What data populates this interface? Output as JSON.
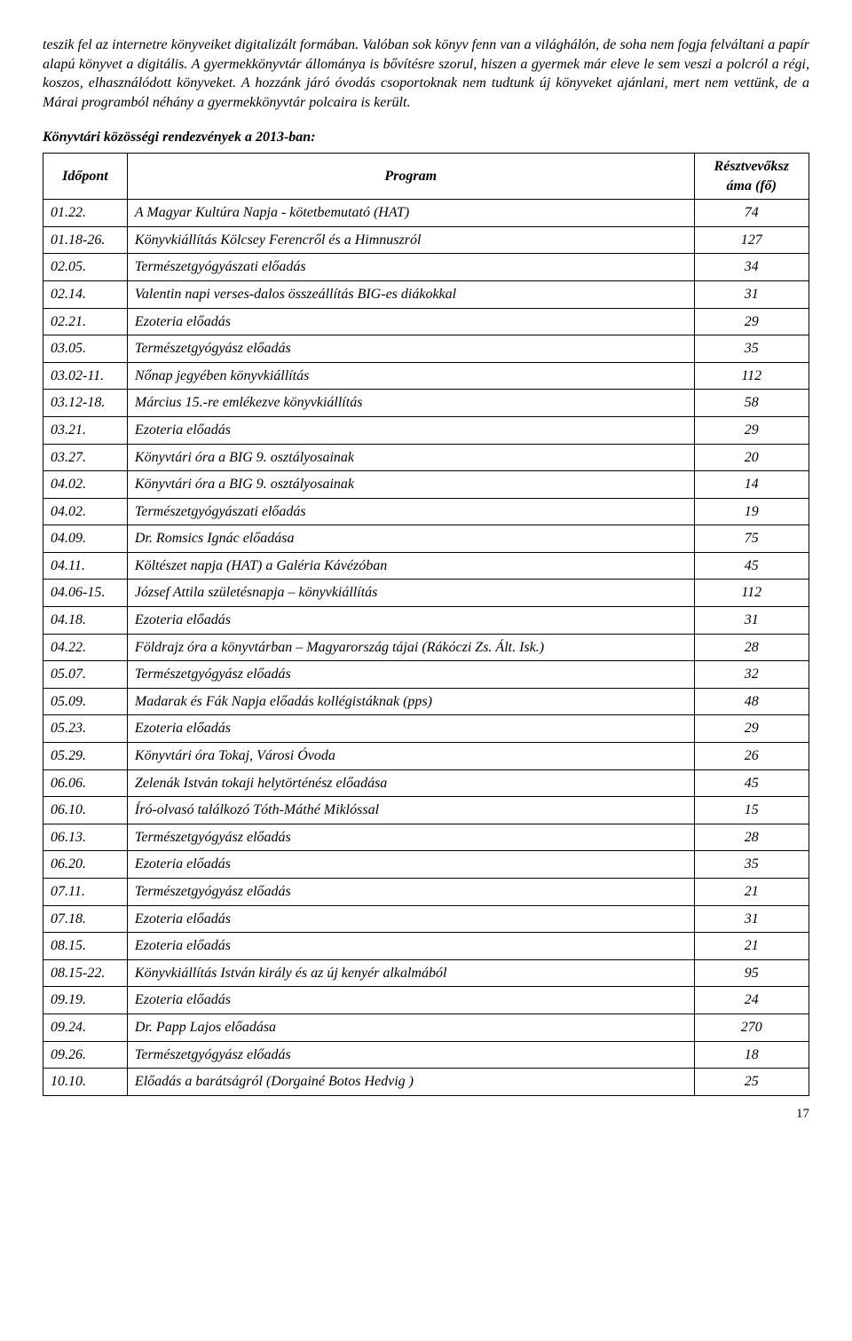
{
  "paragraph": "teszik fel az internetre könyveiket digitalizált formában. Valóban sok könyv fenn van a világhálón, de soha nem fogja felváltani a papír alapú könyvet a digitális. A gyermekkönyvtár állománya is bővítésre szorul, hiszen a gyermek már eleve le sem veszi a polcról a régi, koszos, elhasználódott könyveket. A hozzánk járó óvodás csoportoknak nem tudtunk új könyveket ajánlani, mert nem vettünk, de a Márai programból néhány a gyermekkönyvtár polcaira is került.",
  "section_title": "Könyvtári közösségi rendezvények a 2013-ban:",
  "table": {
    "headers": {
      "date": "Időpont",
      "program": "Program",
      "count": "Résztvevőksz áma (fő)"
    },
    "rows": [
      {
        "date": "01.22.",
        "program": "A Magyar Kultúra Napja - kötetbemutató (HAT)",
        "count": "74"
      },
      {
        "date": "01.18-26.",
        "program": "Könyvkiállítás Kölcsey Ferencről és a Himnuszról",
        "count": "127"
      },
      {
        "date": "02.05.",
        "program": "Természetgyógyászati előadás",
        "count": "34"
      },
      {
        "date": "02.14.",
        "program": "Valentin napi verses-dalos összeállítás BIG-es diákokkal",
        "count": "31"
      },
      {
        "date": "02.21.",
        "program": "Ezoteria előadás",
        "count": "29"
      },
      {
        "date": "03.05.",
        "program": "Természetgyógyász előadás",
        "count": "35"
      },
      {
        "date": "03.02-11.",
        "program": "Nőnap jegyében könyvkiállítás",
        "count": "112"
      },
      {
        "date": "03.12-18.",
        "program": "Március 15.-re emlékezve könyvkiállítás",
        "count": "58"
      },
      {
        "date": "03.21.",
        "program": "Ezoteria előadás",
        "count": "29"
      },
      {
        "date": "03.27.",
        "program": "Könyvtári óra a BIG 9. osztályosainak",
        "count": "20"
      },
      {
        "date": "04.02.",
        "program": "Könyvtári óra a BIG 9. osztályosainak",
        "count": "14"
      },
      {
        "date": "04.02.",
        "program": "Természetgyógyászati előadás",
        "count": "19"
      },
      {
        "date": "04.09.",
        "program": "Dr. Romsics Ignác előadása",
        "count": "75"
      },
      {
        "date": "04.11.",
        "program": "Költészet napja (HAT) a Galéria Kávézóban",
        "count": "45"
      },
      {
        "date": "04.06-15.",
        "program": "József Attila születésnapja – könyvkiállítás",
        "count": "112"
      },
      {
        "date": "04.18.",
        "program": "Ezoteria előadás",
        "count": "31"
      },
      {
        "date": "04.22.",
        "program": "Földrajz óra a könyvtárban – Magyarország tájai (Rákóczi Zs. Ált. Isk.)",
        "count": "28"
      },
      {
        "date": "05.07.",
        "program": "Természetgyógyász előadás",
        "count": "32"
      },
      {
        "date": "05.09.",
        "program": "Madarak és Fák Napja előadás kollégistáknak (pps)",
        "count": "48"
      },
      {
        "date": "05.23.",
        "program": "Ezoteria előadás",
        "count": "29"
      },
      {
        "date": "05.29.",
        "program": "Könyvtári óra Tokaj, Városi Óvoda",
        "count": "26"
      },
      {
        "date": "06.06.",
        "program": "Zelenák István tokaji helytörténész előadása",
        "count": "45"
      },
      {
        "date": "06.10.",
        "program": "Író-olvasó találkozó Tóth-Máthé Miklóssal",
        "count": "15"
      },
      {
        "date": "06.13.",
        "program": "Természetgyógyász előadás",
        "count": "28"
      },
      {
        "date": "06.20.",
        "program": "Ezoteria előadás",
        "count": "35"
      },
      {
        "date": "07.11.",
        "program": "Természetgyógyász előadás",
        "count": "21"
      },
      {
        "date": "07.18.",
        "program": "Ezoteria előadás",
        "count": "31"
      },
      {
        "date": "08.15.",
        "program": "Ezoteria előadás",
        "count": "21"
      },
      {
        "date": "08.15-22.",
        "program": "Könyvkiállítás István király és az új kenyér alkalmából",
        "count": "95"
      },
      {
        "date": "09.19.",
        "program": "Ezoteria előadás",
        "count": "24"
      },
      {
        "date": "09.24.",
        "program": "Dr. Papp Lajos előadása",
        "count": "270"
      },
      {
        "date": "09.26.",
        "program": "Természetgyógyász előadás",
        "count": "18"
      },
      {
        "date": "10.10.",
        "program": "Előadás a barátságról (Dorgainé Botos Hedvig )",
        "count": "25"
      }
    ]
  },
  "page_number": "17"
}
